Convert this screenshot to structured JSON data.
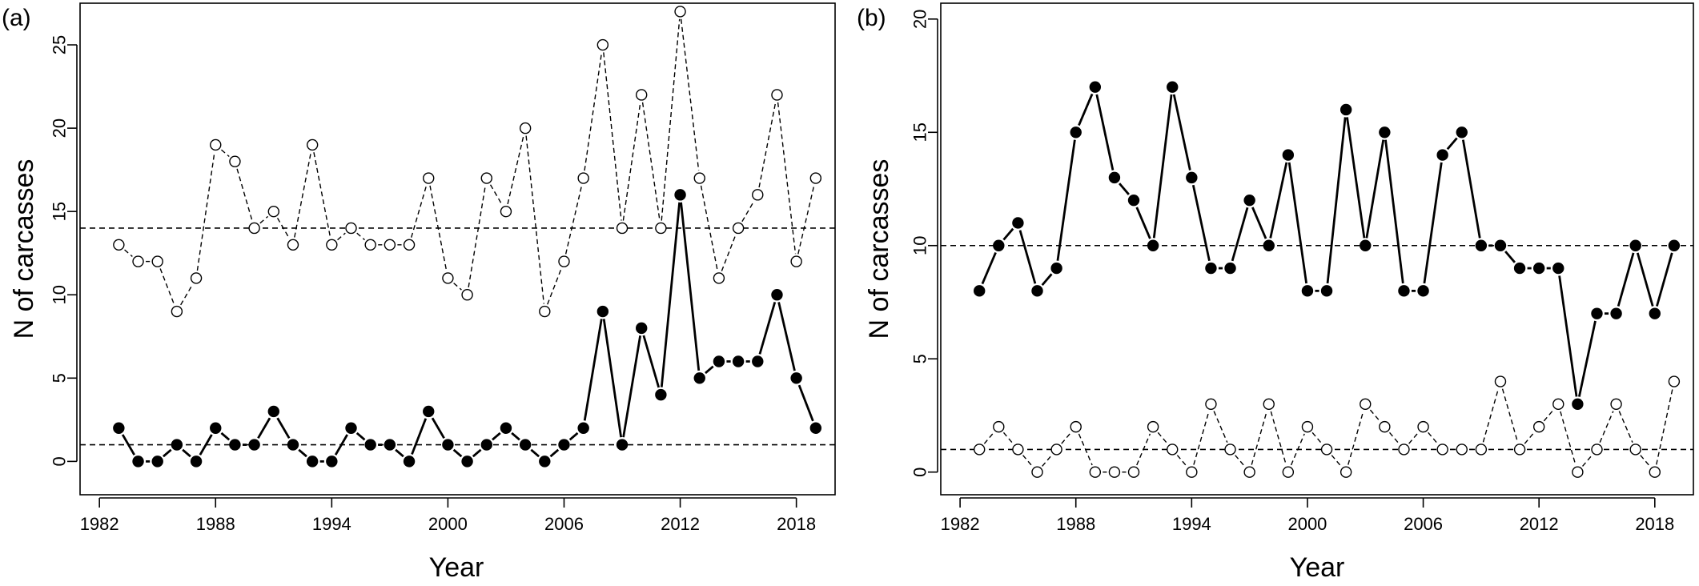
{
  "chart_data": [
    {
      "type": "line",
      "panel_label": "(a)",
      "xlabel": "Year",
      "ylabel": "N of carcasses",
      "xlim": [
        1981,
        2020
      ],
      "ylim": [
        -2,
        27.5
      ],
      "x_ticks": [
        1982,
        1988,
        1994,
        2000,
        2006,
        2012,
        2018
      ],
      "y_ticks": [
        0,
        5,
        10,
        15,
        20,
        25
      ],
      "x": [
        1983,
        1984,
        1985,
        1986,
        1987,
        1988,
        1989,
        1990,
        1991,
        1992,
        1993,
        1994,
        1995,
        1996,
        1997,
        1998,
        1999,
        2000,
        2001,
        2002,
        2003,
        2004,
        2005,
        2006,
        2007,
        2008,
        2009,
        2010,
        2011,
        2012,
        2013,
        2014,
        2015,
        2016,
        2017,
        2018,
        2019
      ],
      "series": [
        {
          "name": "open circles (dashed)",
          "marker": "open",
          "line_style": "dashed-thin",
          "values": [
            13,
            12,
            12,
            9,
            11,
            19,
            18,
            14,
            15,
            13,
            19,
            13,
            14,
            13,
            13,
            13,
            17,
            11,
            10,
            17,
            15,
            20,
            9,
            12,
            17,
            25,
            14,
            22,
            14,
            27,
            17,
            11,
            14,
            16,
            22,
            12,
            17
          ]
        },
        {
          "name": "filled circles (solid)",
          "marker": "filled",
          "line_style": "solid-thick",
          "values": [
            2,
            0,
            0,
            1,
            0,
            2,
            1,
            1,
            3,
            1,
            0,
            0,
            2,
            1,
            1,
            0,
            3,
            1,
            0,
            1,
            2,
            1,
            0,
            1,
            2,
            9,
            1,
            8,
            4,
            16,
            5,
            6,
            6,
            6,
            10,
            5,
            2
          ]
        }
      ],
      "reference_lines": [
        14,
        1
      ]
    },
    {
      "type": "line",
      "panel_label": "(b)",
      "xlabel": "Year",
      "ylabel": "N of carcasses",
      "xlim": [
        1981,
        2020
      ],
      "ylim": [
        -1,
        20.7
      ],
      "x_ticks": [
        1982,
        1988,
        1994,
        2000,
        2006,
        2012,
        2018
      ],
      "y_ticks": [
        0,
        5,
        10,
        15,
        20
      ],
      "x": [
        1983,
        1984,
        1985,
        1986,
        1987,
        1988,
        1989,
        1990,
        1991,
        1992,
        1993,
        1994,
        1995,
        1996,
        1997,
        1998,
        1999,
        2000,
        2001,
        2002,
        2003,
        2004,
        2005,
        2006,
        2007,
        2008,
        2009,
        2010,
        2011,
        2012,
        2013,
        2014,
        2015,
        2016,
        2017,
        2018,
        2019
      ],
      "series": [
        {
          "name": "filled circles (solid)",
          "marker": "filled",
          "line_style": "solid-thick",
          "values": [
            8,
            10,
            11,
            8,
            9,
            15,
            17,
            13,
            12,
            10,
            17,
            13,
            9,
            9,
            12,
            10,
            14,
            8,
            8,
            16,
            10,
            15,
            8,
            8,
            14,
            15,
            10,
            10,
            9,
            9,
            9,
            3,
            7,
            7,
            10,
            7,
            10
          ]
        },
        {
          "name": "open circles (dashed)",
          "marker": "open",
          "line_style": "dashed-thin",
          "values": [
            1,
            2,
            1,
            0,
            1,
            2,
            0,
            0,
            0,
            2,
            1,
            0,
            3,
            1,
            0,
            3,
            0,
            2,
            1,
            0,
            3,
            2,
            1,
            2,
            1,
            1,
            1,
            4,
            1,
            2,
            3,
            0,
            1,
            3,
            1,
            0,
            4
          ]
        }
      ],
      "reference_lines": [
        10,
        1
      ]
    }
  ]
}
